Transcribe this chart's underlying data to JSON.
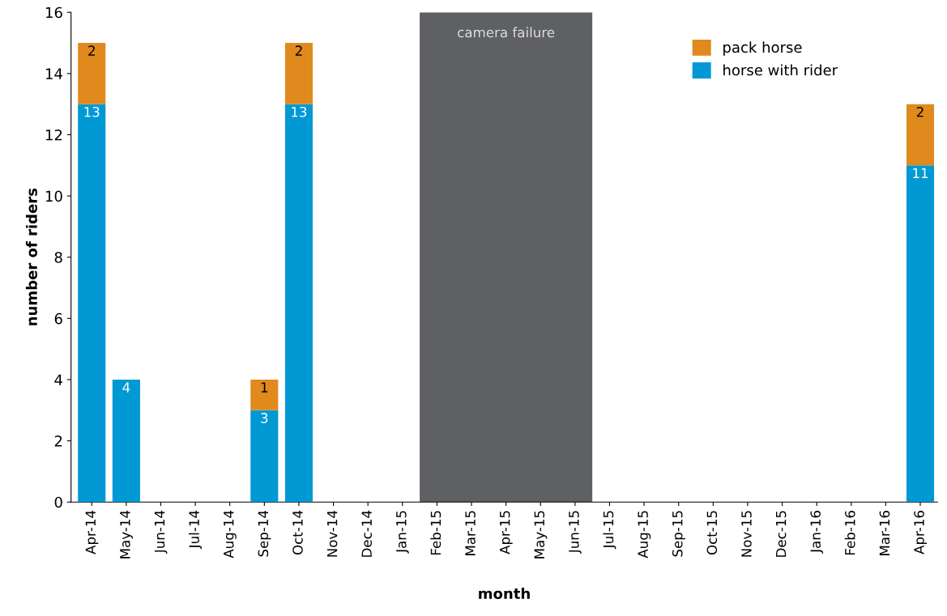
{
  "chart_data": {
    "type": "bar",
    "stacked": true,
    "xlabel": "month",
    "ylabel": "number of riders",
    "categories": [
      "Apr-14",
      "May-14",
      "Jun-14",
      "Jul-14",
      "Aug-14",
      "Sep-14",
      "Oct-14",
      "Nov-14",
      "Dec-14",
      "Jan-15",
      "Feb-15",
      "Mar-15",
      "Apr-15",
      "May-15",
      "Jun-15",
      "Jul-15",
      "Aug-15",
      "Sep-15",
      "Oct-15",
      "Nov-15",
      "Dec-15",
      "Jan-16",
      "Feb-16",
      "Mar-16",
      "Apr-16"
    ],
    "series": [
      {
        "name": "horse with rider",
        "color": "#0099d4",
        "values": [
          13,
          4,
          0,
          0,
          0,
          3,
          13,
          0,
          0,
          0,
          null,
          null,
          null,
          null,
          null,
          0,
          0,
          0,
          0,
          0,
          0,
          0,
          0,
          0,
          11
        ],
        "value_labels": [
          "13",
          "4",
          null,
          null,
          null,
          "3",
          "13",
          null,
          null,
          null,
          null,
          null,
          null,
          null,
          null,
          null,
          null,
          null,
          null,
          null,
          null,
          null,
          null,
          null,
          "11"
        ]
      },
      {
        "name": "pack horse",
        "color": "#e08a1e",
        "values": [
          2,
          0,
          0,
          0,
          0,
          1,
          2,
          0,
          0,
          0,
          null,
          null,
          null,
          null,
          null,
          0,
          0,
          0,
          0,
          0,
          0,
          0,
          0,
          0,
          2
        ],
        "value_labels": [
          "2",
          null,
          null,
          null,
          null,
          "1",
          "2",
          null,
          null,
          null,
          null,
          null,
          null,
          null,
          null,
          null,
          null,
          null,
          null,
          null,
          null,
          null,
          null,
          null,
          "2"
        ]
      }
    ],
    "bands": [
      {
        "axis": "x",
        "from": "Feb-15",
        "to": "Jun-15",
        "label": "camera failure",
        "color": "#5f6062"
      }
    ],
    "ylim": [
      0,
      16
    ],
    "yticks": [
      0,
      2,
      4,
      6,
      8,
      10,
      12,
      14,
      16
    ],
    "grid": false,
    "legend": "top right"
  }
}
